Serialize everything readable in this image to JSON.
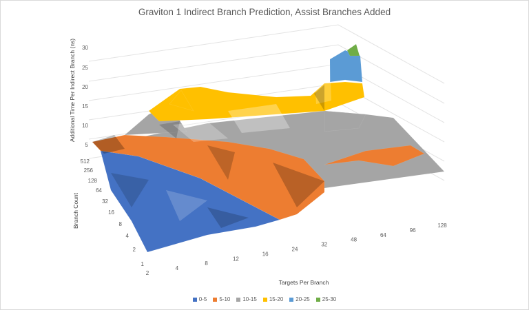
{
  "chart_data": {
    "type": "surface",
    "title": "Graviton 1 Indirect Branch Prediction, Assist Branches Added",
    "x_axis": {
      "label": "Targets Per Branch",
      "categories": [
        "2",
        "4",
        "8",
        "12",
        "16",
        "24",
        "32",
        "48",
        "64",
        "96",
        "128"
      ]
    },
    "depth_axis": {
      "label": "Branch Count",
      "categories": [
        "1",
        "2",
        "4",
        "8",
        "16",
        "32",
        "64",
        "128",
        "256",
        "512"
      ]
    },
    "z_axis": {
      "label": "Additional Time Per Indirect Branch (ns)",
      "ticks": [
        "5",
        "10",
        "15",
        "20",
        "25",
        "30"
      ],
      "range": [
        0,
        30
      ]
    },
    "bands": [
      {
        "label": "0-5",
        "color": "#4472c4"
      },
      {
        "label": "5-10",
        "color": "#ed7d31"
      },
      {
        "label": "10-15",
        "color": "#a5a5a5"
      },
      {
        "label": "15-20",
        "color": "#ffc000"
      },
      {
        "label": "20-25",
        "color": "#5b9bd5"
      },
      {
        "label": "25-30",
        "color": "#70ad47"
      }
    ],
    "grid": true,
    "legend_position": "bottom"
  }
}
